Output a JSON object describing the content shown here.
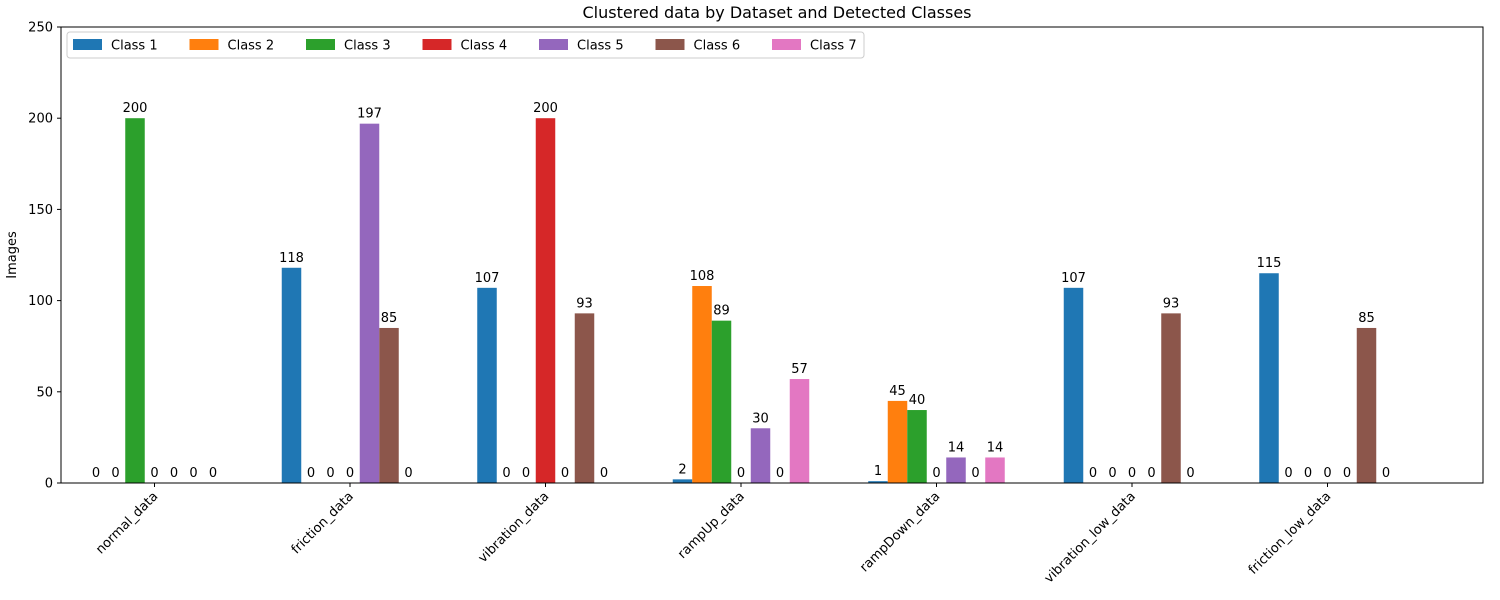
{
  "chart_data": {
    "type": "bar",
    "title": "Clustered data by Dataset and Detected Classes",
    "xlabel": "",
    "ylabel": "Images",
    "ylim": [
      0,
      250
    ],
    "yticks": [
      0,
      50,
      100,
      150,
      200,
      250
    ],
    "grid": false,
    "legend_position": "top-left",
    "categories": [
      "normal_data",
      "friction_data",
      "vibration_data",
      "rampUp_data",
      "rampDown_data",
      "vibration_low_data",
      "friction_low_data"
    ],
    "series": [
      {
        "name": "Class 1",
        "color": "#1f77b4",
        "values": [
          0,
          118,
          107,
          2,
          1,
          107,
          115
        ]
      },
      {
        "name": "Class 2",
        "color": "#ff7f0e",
        "values": [
          0,
          0,
          0,
          108,
          45,
          0,
          0
        ]
      },
      {
        "name": "Class 3",
        "color": "#2ca02c",
        "values": [
          200,
          0,
          0,
          89,
          40,
          0,
          0
        ]
      },
      {
        "name": "Class 4",
        "color": "#d62728",
        "values": [
          0,
          0,
          200,
          0,
          0,
          0,
          0
        ]
      },
      {
        "name": "Class 5",
        "color": "#9467bd",
        "values": [
          0,
          197,
          0,
          30,
          14,
          0,
          0
        ]
      },
      {
        "name": "Class 6",
        "color": "#8c564b",
        "values": [
          0,
          85,
          93,
          0,
          0,
          93,
          85
        ]
      },
      {
        "name": "Class 7",
        "color": "#e377c2",
        "values": [
          0,
          0,
          0,
          57,
          14,
          0,
          0
        ]
      }
    ]
  }
}
